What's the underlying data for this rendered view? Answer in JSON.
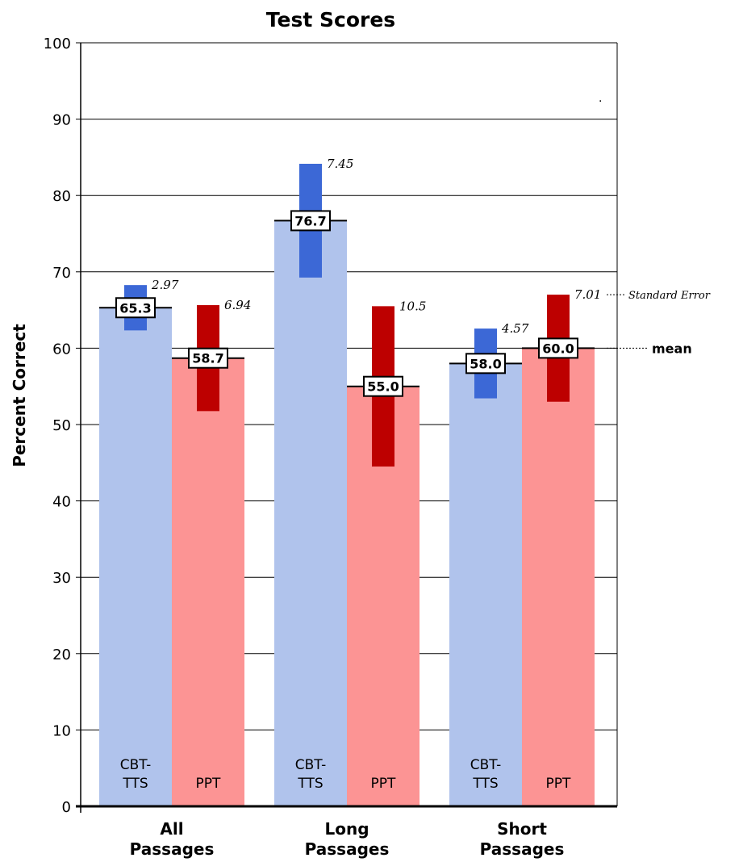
{
  "chart_data": {
    "type": "bar",
    "title": "Test Scores",
    "ylabel": "Percent Correct",
    "xlabel": "",
    "ylim": [
      0,
      100
    ],
    "yticks": [
      0,
      10,
      20,
      30,
      40,
      50,
      60,
      70,
      80,
      90,
      100
    ],
    "grid": true,
    "groups": [
      {
        "label_line1": "All",
        "label_line2": "Passages"
      },
      {
        "label_line1": "Long",
        "label_line2": "Passages"
      },
      {
        "label_line1": "Short",
        "label_line2": "Passages"
      }
    ],
    "series": [
      {
        "label_line1": "CBT-",
        "label_line2": "TTS",
        "bar_color": "#b0c3ec",
        "se_color": "#3c68d6",
        "means": [
          65.3,
          76.7,
          58.0
        ],
        "mean_labels": [
          "65.3",
          "76.7",
          "58.0"
        ],
        "se": [
          2.97,
          7.45,
          4.57
        ],
        "se_labels": [
          "2.97",
          "7.45",
          "4.57"
        ]
      },
      {
        "label_line1": "PPT",
        "label_line2": "",
        "bar_color": "#fc9494",
        "se_color": "#bd0000",
        "means": [
          58.7,
          55.0,
          60.0
        ],
        "mean_labels": [
          "58.7",
          "55.0",
          "60.0"
        ],
        "se": [
          6.94,
          10.5,
          7.01
        ],
        "se_labels": [
          "6.94",
          "10.5",
          "7.01"
        ]
      }
    ],
    "annotations": {
      "standard_error": "Standard Error",
      "mean": "mean"
    }
  }
}
